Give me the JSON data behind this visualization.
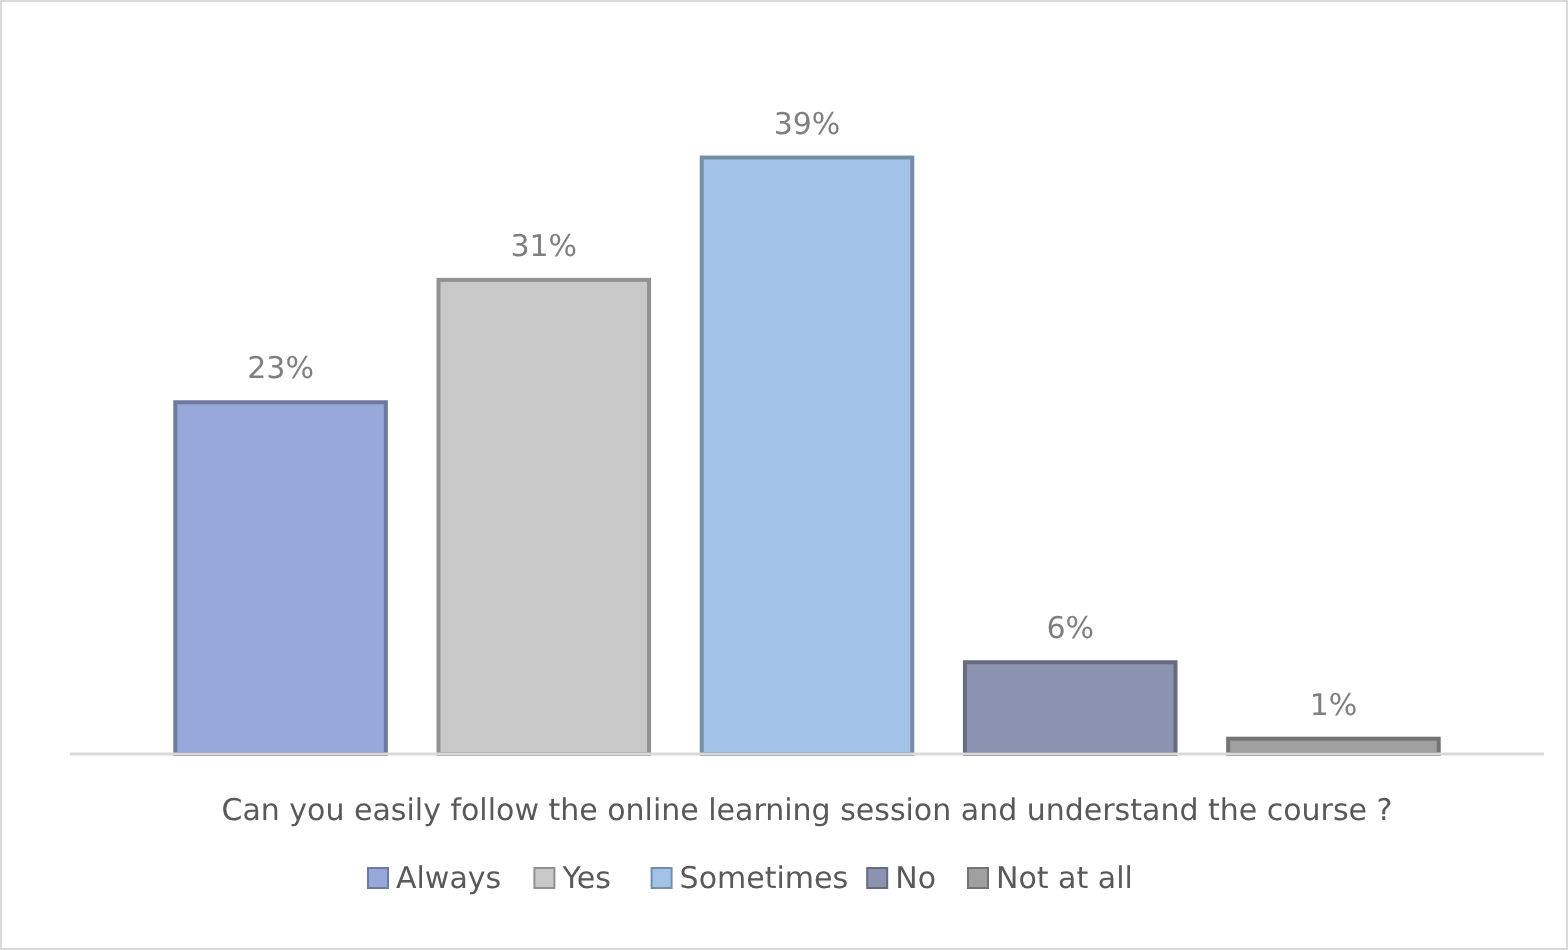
{
  "chart_data": {
    "type": "bar",
    "xlabel": "Can you easily follow the online learning session and understand the course ?",
    "categories": [
      null,
      null,
      null,
      null,
      null
    ],
    "stacked": true,
    "series": [
      {
        "name": "Always",
        "color": "#97a8da",
        "values": [
          23,
          null,
          null,
          null,
          null
        ],
        "value_labels": [
          "23%",
          null,
          null,
          null,
          null
        ]
      },
      {
        "name": "Yes",
        "color": "#c8c8c8",
        "values": [
          null,
          31,
          null,
          null,
          null
        ],
        "value_labels": [
          null,
          "31%",
          null,
          null,
          null
        ]
      },
      {
        "name": "Sometimes",
        "color": "#a3c2e8",
        "values": [
          null,
          null,
          39,
          null,
          null
        ],
        "value_labels": [
          null,
          null,
          "39%",
          null,
          null
        ]
      },
      {
        "name": "No",
        "color": "#8c93b0",
        "values": [
          null,
          null,
          null,
          6,
          null
        ],
        "value_labels": [
          null,
          null,
          null,
          "6%",
          null
        ]
      },
      {
        "name": "Not at all",
        "color": "#a0a0a0",
        "values": [
          null,
          null,
          null,
          null,
          1
        ],
        "value_labels": [
          null,
          null,
          null,
          null,
          "1%"
        ]
      }
    ],
    "legend": "bottom"
  }
}
